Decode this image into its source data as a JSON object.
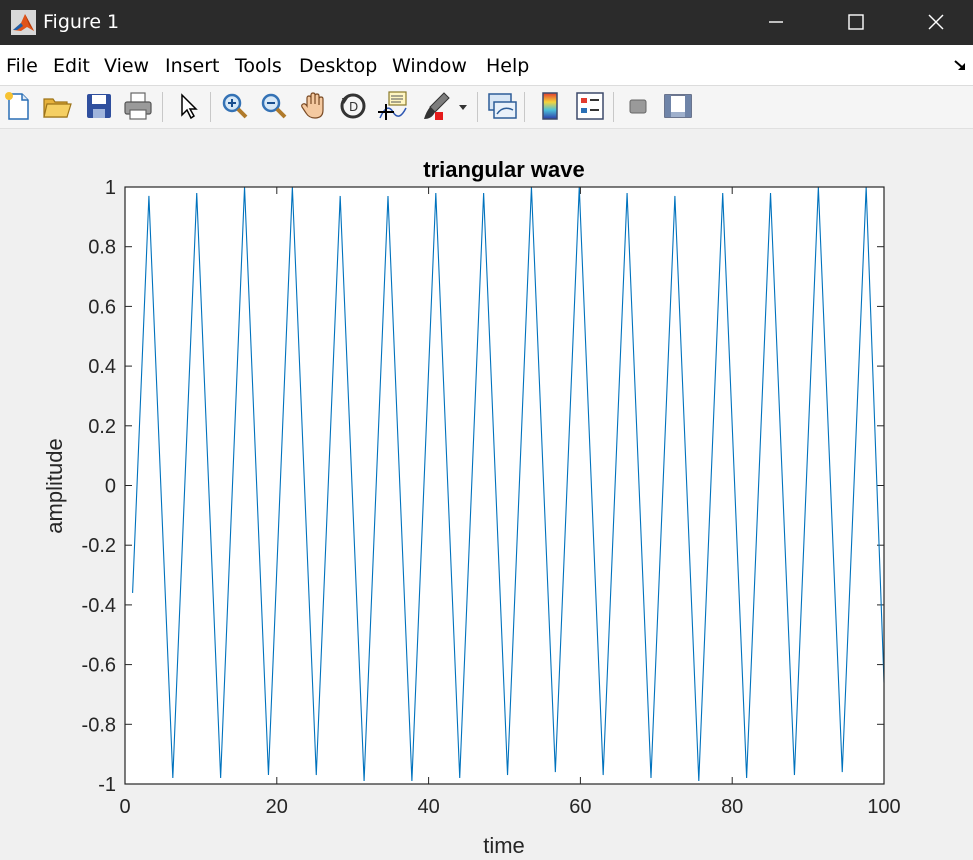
{
  "window": {
    "title": "Figure 1"
  },
  "menu": [
    "File",
    "Edit",
    "View",
    "Insert",
    "Tools",
    "Desktop",
    "Window",
    "Help"
  ],
  "toolbar": {
    "icons": [
      "new-figure-icon",
      "open-file-icon",
      "save-icon",
      "print-icon",
      "edit-plot-arrow-icon",
      "zoom-in-icon",
      "zoom-out-icon",
      "pan-hand-icon",
      "rotate-3d-icon",
      "data-cursor-icon",
      "brush-icon",
      "link-plot-icon",
      "colorbar-icon",
      "legend-icon",
      "hide-plot-tools-icon",
      "show-plot-tools-icon"
    ]
  },
  "colors": {
    "line": "#0072bd",
    "titlebar": "#2b2b2b",
    "figure_bg": "#f0f0f0"
  },
  "chart_data": {
    "type": "line",
    "title": "triangular wave",
    "xlabel": "time",
    "ylabel": "amplitude",
    "xlim": [
      0,
      100
    ],
    "ylim": [
      -1,
      1
    ],
    "xticks": [
      "0",
      "20",
      "40",
      "60",
      "80",
      "100"
    ],
    "yticks": [
      "-1",
      "-0.8",
      "-0.6",
      "-0.4",
      "-0.2",
      "0",
      "0.2",
      "0.4",
      "0.6",
      "0.8",
      "1"
    ],
    "grid": false,
    "series": [
      {
        "x": [
          1,
          3.15,
          6.3,
          9.45,
          12.6,
          15.75,
          18.9,
          22.05,
          25.2,
          28.35,
          31.5,
          34.65,
          37.8,
          40.95,
          44.1,
          47.25,
          50.4,
          53.55,
          56.7,
          59.85,
          63.0,
          66.15,
          69.3,
          72.45,
          75.6,
          78.75,
          81.9,
          85.05,
          88.2,
          91.35,
          94.5,
          97.65,
          100
        ],
        "y": [
          -0.36,
          0.97,
          -0.98,
          0.98,
          -0.98,
          1.0,
          -0.97,
          1.0,
          -0.97,
          0.97,
          -0.99,
          0.97,
          -0.99,
          0.98,
          -0.98,
          0.98,
          -0.97,
          1.0,
          -0.96,
          1.0,
          -0.97,
          0.98,
          -0.98,
          0.97,
          -0.99,
          0.98,
          -0.98,
          0.98,
          -0.97,
          1.0,
          -0.96,
          1.0,
          -0.66
        ]
      }
    ]
  }
}
